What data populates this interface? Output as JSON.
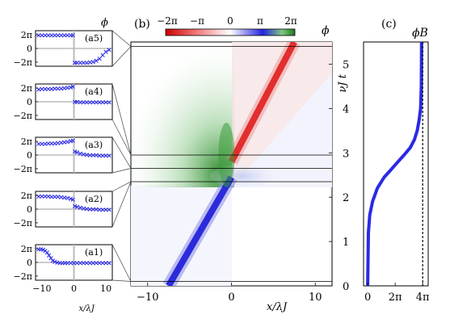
{
  "chart_data": [
    {
      "id": "a5",
      "type": "scatter",
      "panel_label": "(a5)",
      "ylabel": "ϕ",
      "yticks": [
        "2π",
        "0",
        "−2π"
      ],
      "xticks": [],
      "xlim": [
        -12,
        12
      ],
      "ylim": [
        -2.6,
        2.6
      ],
      "series": [
        {
          "color": "#2a2ae6",
          "points": [
            [
              -11,
              2.0
            ],
            [
              -10,
              2.0
            ],
            [
              -9,
              2.0
            ],
            [
              -8,
              2.0
            ],
            [
              -7,
              2.0
            ],
            [
              -6,
              2.0
            ],
            [
              -5,
              2.0
            ],
            [
              -4,
              2.0
            ],
            [
              -3,
              2.0
            ],
            [
              -2,
              2.0
            ],
            [
              -1,
              2.0
            ],
            [
              -0.3,
              2.0
            ],
            [
              0.3,
              -2.0
            ],
            [
              1,
              -2.0
            ],
            [
              2,
              -2.0
            ],
            [
              3,
              -2.0
            ],
            [
              4,
              -1.98
            ],
            [
              5,
              -1.95
            ],
            [
              6,
              -1.88
            ],
            [
              7,
              -1.7
            ],
            [
              8,
              -1.4
            ],
            [
              9,
              -0.9
            ],
            [
              10,
              -0.4
            ],
            [
              11,
              -0.1
            ]
          ]
        }
      ]
    },
    {
      "id": "a4",
      "type": "scatter",
      "panel_label": "(a4)",
      "ylabel": "",
      "yticks": [
        "2π",
        "0",
        "−2π"
      ],
      "xticks": [],
      "xlim": [
        -12,
        12
      ],
      "ylim": [
        -2.6,
        2.6
      ],
      "series": [
        {
          "color": "#2a2ae6",
          "points": [
            [
              -11,
              1.92
            ],
            [
              -10,
              1.93
            ],
            [
              -9,
              1.94
            ],
            [
              -8,
              1.95
            ],
            [
              -7,
              1.96
            ],
            [
              -6,
              1.98
            ],
            [
              -5,
              2.0
            ],
            [
              -4,
              2.02
            ],
            [
              -3,
              2.06
            ],
            [
              -2,
              2.12
            ],
            [
              -1,
              2.2
            ],
            [
              -0.3,
              2.3
            ],
            [
              0.3,
              0.05
            ],
            [
              1,
              0.03
            ],
            [
              2,
              0.02
            ],
            [
              3,
              0.01
            ],
            [
              4,
              0.0
            ],
            [
              5,
              0.0
            ],
            [
              6,
              0.0
            ],
            [
              7,
              0.0
            ],
            [
              8,
              0.0
            ],
            [
              9,
              0.0
            ],
            [
              10,
              0.0
            ],
            [
              11,
              0.0
            ]
          ]
        }
      ]
    },
    {
      "id": "a3",
      "type": "scatter",
      "panel_label": "(a3)",
      "ylabel": "",
      "yticks": [
        "2π",
        "0",
        "−2π"
      ],
      "xticks": [],
      "xlim": [
        -12,
        12
      ],
      "ylim": [
        -2.6,
        2.6
      ],
      "series": [
        {
          "color": "#2a2ae6",
          "points": [
            [
              -11,
              1.7
            ],
            [
              -10,
              1.72
            ],
            [
              -9,
              1.74
            ],
            [
              -8,
              1.76
            ],
            [
              -7,
              1.78
            ],
            [
              -6,
              1.8
            ],
            [
              -5,
              1.84
            ],
            [
              -4,
              1.88
            ],
            [
              -3,
              1.93
            ],
            [
              -2,
              2.0
            ],
            [
              -1,
              2.1
            ],
            [
              -0.3,
              2.2
            ],
            [
              0.3,
              0.6
            ],
            [
              1,
              0.45
            ],
            [
              2,
              0.3
            ],
            [
              3,
              0.2
            ],
            [
              4,
              0.12
            ],
            [
              5,
              0.08
            ],
            [
              6,
              0.05
            ],
            [
              7,
              0.03
            ],
            [
              8,
              0.02
            ],
            [
              9,
              0.01
            ],
            [
              10,
              0.0
            ],
            [
              11,
              0.0
            ]
          ]
        }
      ]
    },
    {
      "id": "a2",
      "type": "scatter",
      "panel_label": "(a2)",
      "ylabel": "",
      "yticks": [
        "2π",
        "0",
        "−2π"
      ],
      "xticks": [],
      "xlim": [
        -12,
        12
      ],
      "ylim": [
        -2.6,
        2.6
      ],
      "series": [
        {
          "color": "#2a2ae6",
          "points": [
            [
              -11,
              1.95
            ],
            [
              -10,
              1.95
            ],
            [
              -9,
              1.94
            ],
            [
              -8,
              1.93
            ],
            [
              -7,
              1.92
            ],
            [
              -6,
              1.9
            ],
            [
              -5,
              1.88
            ],
            [
              -4,
              1.85
            ],
            [
              -3,
              1.8
            ],
            [
              -2,
              1.72
            ],
            [
              -1,
              1.6
            ],
            [
              -0.3,
              1.45
            ],
            [
              0.3,
              0.55
            ],
            [
              1,
              0.4
            ],
            [
              2,
              0.28
            ],
            [
              3,
              0.18
            ],
            [
              4,
              0.12
            ],
            [
              5,
              0.08
            ],
            [
              6,
              0.05
            ],
            [
              7,
              0.03
            ],
            [
              8,
              0.02
            ],
            [
              9,
              0.01
            ],
            [
              10,
              0.0
            ],
            [
              11,
              0.0
            ]
          ]
        }
      ]
    },
    {
      "id": "a1",
      "type": "scatter",
      "panel_label": "(a1)",
      "ylabel": "",
      "yticks": [
        "2π",
        "0",
        "−2π"
      ],
      "xticks": [
        "−10",
        "0",
        "10"
      ],
      "xlabel": "x/λJ",
      "xlim": [
        -12,
        12
      ],
      "ylim": [
        -2.6,
        2.6
      ],
      "series": [
        {
          "color": "#2a2ae6",
          "points": [
            [
              -11,
              2.0
            ],
            [
              -10.3,
              1.98
            ],
            [
              -9.6,
              1.93
            ],
            [
              -9,
              1.8
            ],
            [
              -8.4,
              1.55
            ],
            [
              -7.8,
              1.15
            ],
            [
              -7.2,
              0.7
            ],
            [
              -6.6,
              0.35
            ],
            [
              -6,
              0.15
            ],
            [
              -5.2,
              0.05
            ],
            [
              -4.4,
              0.02
            ],
            [
              -3.6,
              0.0
            ],
            [
              -2.8,
              0.0
            ],
            [
              -2,
              0.0
            ],
            [
              -1,
              0.0
            ],
            [
              0,
              0.0
            ],
            [
              1,
              0.0
            ],
            [
              2,
              0.0
            ],
            [
              3,
              0.0
            ],
            [
              4,
              0.0
            ],
            [
              5,
              0.0
            ],
            [
              6,
              0.0
            ],
            [
              7,
              0.0
            ],
            [
              8,
              0.0
            ],
            [
              9,
              0.0
            ],
            [
              10,
              0.0
            ],
            [
              11,
              0.0
            ]
          ]
        }
      ]
    },
    {
      "id": "b",
      "type": "heatmap",
      "panel_label": "(b)",
      "xlabel": "x/λJ",
      "ylabel": "νJ t",
      "xticks": [
        "−10",
        "0",
        "10"
      ],
      "yticks": [
        "0",
        "1",
        "2",
        "3",
        "4",
        "5"
      ],
      "xlim": [
        -12,
        12
      ],
      "ylim": [
        0,
        5.5
      ],
      "colorbar": {
        "label": "ϕ",
        "ticks": [
          "−2π",
          "−π",
          "0",
          "π",
          "2π"
        ]
      },
      "snapshot_times": [
        0.1,
        2.35,
        2.65,
        2.95,
        5.4
      ],
      "trajectory": [
        [
          -7.5,
          0.0
        ],
        [
          0,
          2.45
        ],
        [
          7.5,
          5.5
        ]
      ]
    },
    {
      "id": "c",
      "type": "line",
      "panel_label": "(c)",
      "xlabel": "",
      "ylabel": "",
      "title": "ϕB",
      "xticks": [
        "0",
        "2π",
        "4π"
      ],
      "yticks": [],
      "xlim": [
        -0.3,
        4.4
      ],
      "ylim": [
        0,
        5.5
      ],
      "series": [
        {
          "color": "#2a2ae6",
          "points": [
            [
              0,
              0
            ],
            [
              0.05,
              1.2
            ],
            [
              0.15,
              1.6
            ],
            [
              0.35,
              1.9
            ],
            [
              0.7,
              2.2
            ],
            [
              1.2,
              2.45
            ],
            [
              1.7,
              2.62
            ],
            [
              2.2,
              2.8
            ],
            [
              2.7,
              2.97
            ],
            [
              3.1,
              3.12
            ],
            [
              3.4,
              3.3
            ],
            [
              3.6,
              3.5
            ],
            [
              3.75,
              3.75
            ],
            [
              3.85,
              4.0
            ],
            [
              3.9,
              4.5
            ],
            [
              3.92,
              5.5
            ]
          ]
        }
      ],
      "reference_line": {
        "x": 4,
        "style": "dashed"
      }
    }
  ]
}
